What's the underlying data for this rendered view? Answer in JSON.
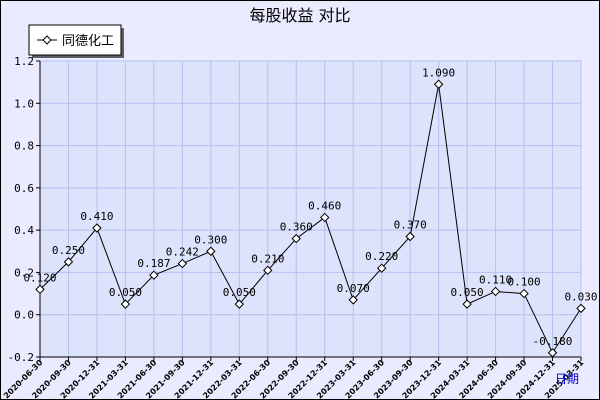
{
  "chart_data": {
    "type": "line",
    "title": "每股收益  对比",
    "xlabel": "日期",
    "ylabel": "",
    "ylim": [
      -0.2,
      1.2
    ],
    "yticks": [
      "1.2",
      "1.0",
      "0.8",
      "0.6",
      "0.4",
      "0.2",
      "0.0",
      "-0.2"
    ],
    "grid": true,
    "legend_position": "top-left",
    "categories": [
      "2020-06-30",
      "2020-09-30",
      "2020-12-31",
      "2021-03-31",
      "2021-06-30",
      "2021-09-30",
      "2021-12-31",
      "2022-03-31",
      "2022-06-30",
      "2022-09-30",
      "2022-12-31",
      "2023-03-31",
      "2023-06-30",
      "2023-09-30",
      "2023-12-31",
      "2024-03-31",
      "2024-06-30",
      "2024-09-30",
      "2024-12-31",
      "2025-03-31"
    ],
    "series": [
      {
        "name": "同德化工",
        "values": [
          0.12,
          0.25,
          0.41,
          0.05,
          0.187,
          0.242,
          0.3,
          0.05,
          0.21,
          0.36,
          0.46,
          0.07,
          0.22,
          0.37,
          1.09,
          0.05,
          0.11,
          0.1,
          -0.18,
          0.03
        ],
        "labels": [
          "0.120",
          "0.250",
          "0.410",
          "0.050",
          "0.187",
          "0.242",
          "0.300",
          "0.050",
          "0.210",
          "0.360",
          "0.460",
          "0.070",
          "0.220",
          "0.370",
          "1.090",
          "0.050",
          "0.110",
          "0.100",
          "-0.180",
          "0.030"
        ]
      }
    ],
    "colors": {
      "background": "#ebebff",
      "plot_background": "#dde3fa",
      "grid": "#b4c0f0",
      "line": "#000000",
      "xlabel": "#0000cc"
    }
  }
}
